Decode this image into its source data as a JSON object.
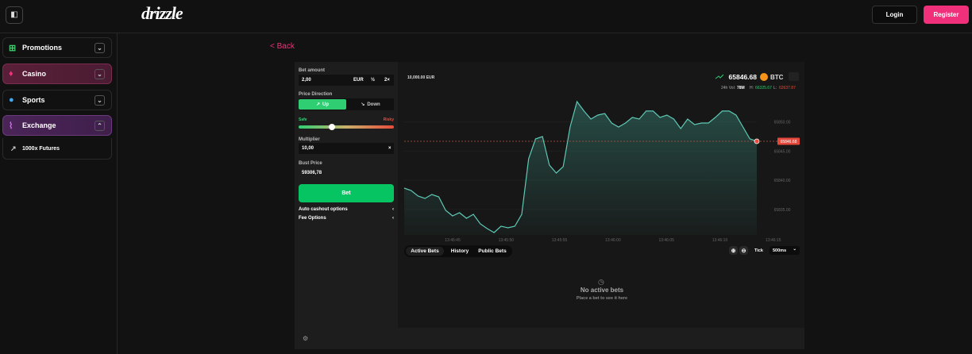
{
  "header": {
    "logo": "drizzle",
    "login": "Login",
    "register": "Register"
  },
  "sidebar": {
    "items": [
      {
        "label": "Promotions"
      },
      {
        "label": "Casino"
      },
      {
        "label": "Sports"
      },
      {
        "label": "Exchange"
      }
    ],
    "subitem": "1000x Futures"
  },
  "back": "< Back",
  "bet_form": {
    "bet_amount_label": "Bet amount",
    "bet_amount": "2,00",
    "currency": "EUR",
    "half": "½",
    "double": "2×",
    "price_direction_label": "Price Direction",
    "up": "Up",
    "down": "Down",
    "safe": "Safe",
    "risky": "Risky",
    "multiplier_label": "Multiplier",
    "multiplier": "10,00",
    "multiplier_suffix": "×",
    "bust_price_label": "Bust Price",
    "bust_price": "59306,78",
    "bet_button": "Bet",
    "auto_cashout": "Auto cashout options",
    "fee_options": "Fee Options"
  },
  "chart_data": {
    "type": "line",
    "balance": "10,000.00 EUR",
    "symbol": "BTC",
    "price": 65846.68,
    "vol_label": "24h Vol:",
    "vol": "78M",
    "high_label": "H:",
    "high": "66325.67",
    "low_label": "L:",
    "low": "62637.87",
    "color": "#5ec9b5",
    "values": [
      65838.64,
      65838.24,
      65837.28,
      65836.87,
      65837.55,
      65837.15,
      65834.83,
      65833.88,
      65834.42,
      65833.47,
      65834.15,
      65832.52,
      65831.7,
      65831.02,
      65832.11,
      65831.83,
      65832.11,
      65834.15,
      65843.68,
      65847.09,
      65847.5,
      65842.59,
      65841.23,
      65842.32,
      65849.13,
      65853.49,
      65851.86,
      65850.49,
      65851.17,
      65851.45,
      65849.81,
      65849.13,
      65849.81,
      65850.77,
      65850.49,
      65851.86,
      65851.86,
      65850.77,
      65851.17,
      65850.49,
      65848.86,
      65850.49,
      65849.54,
      65849.81,
      65849.81,
      65850.77,
      65851.86,
      65851.86,
      65851.17,
      65849.13,
      65847.09,
      65846.68
    ],
    "ylim": [
      65830.61,
      65855.12
    ],
    "yticks": [
      {
        "value": 65835,
        "label": "65835.00"
      },
      {
        "value": 65840,
        "label": "65840.00"
      },
      {
        "value": 65845,
        "label": "65845.00"
      },
      {
        "value": 65850,
        "label": "65850.00"
      }
    ],
    "x_labels": [
      "13:45:45",
      "13:45:50",
      "13:45:55",
      "13:46:00",
      "13:46:05",
      "13:46:10",
      "13:46:15"
    ]
  },
  "bets": {
    "tabs": [
      "Active Bets",
      "History",
      "Public Bets"
    ],
    "tick_label": "Tick",
    "interval": "500ms",
    "empty_title": "No active bets",
    "empty_hint": "Place a bet to see it here"
  }
}
